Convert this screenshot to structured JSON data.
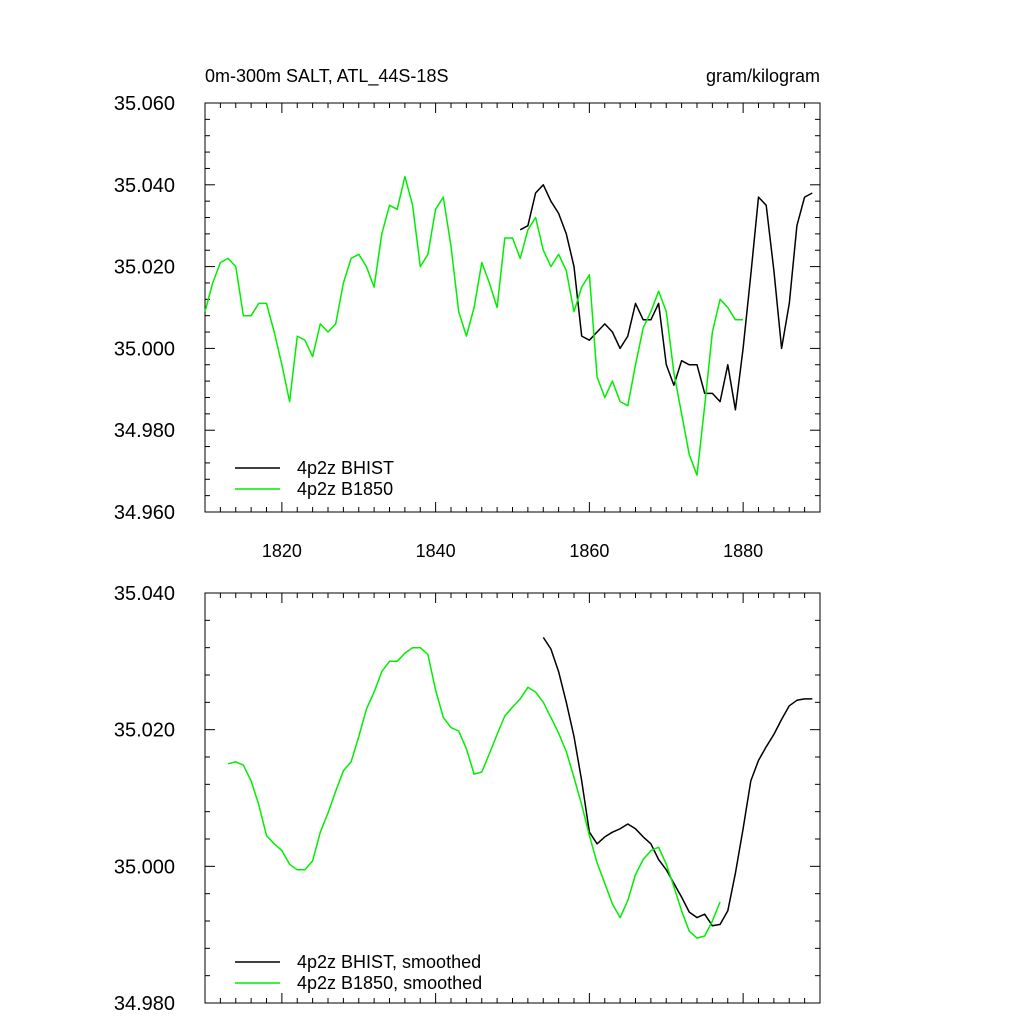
{
  "chart_data": [
    {
      "type": "line",
      "title_left": "0m-300m SALT, ATL_44S-18S",
      "title_right": "gram/kilogram",
      "xlim": [
        1810,
        1890
      ],
      "ylim": [
        34.96,
        35.06
      ],
      "x_ticks": [
        1820,
        1840,
        1860,
        1880
      ],
      "y_ticks": [
        34.96,
        34.98,
        35.0,
        35.02,
        35.04,
        35.06
      ],
      "y_tick_labels": [
        "34.960",
        "34.980",
        "35.000",
        "35.020",
        "35.040",
        "35.060"
      ],
      "legend_position": "bottom-left",
      "series": [
        {
          "name": "4p2z BHIST",
          "color": "#000000",
          "x": [
            1851,
            1852,
            1853,
            1854,
            1855,
            1856,
            1857,
            1858,
            1859,
            1860,
            1861,
            1862,
            1863,
            1864,
            1865,
            1866,
            1867,
            1868,
            1869,
            1870,
            1871,
            1872,
            1873,
            1874,
            1875,
            1876,
            1877,
            1878,
            1879,
            1880,
            1881,
            1882,
            1883,
            1884,
            1885,
            1886,
            1887,
            1888,
            1889
          ],
          "y": [
            35.029,
            35.03,
            35.038,
            35.04,
            35.036,
            35.033,
            35.028,
            35.02,
            35.003,
            35.002,
            35.004,
            35.006,
            35.004,
            35.0,
            35.003,
            35.011,
            35.007,
            35.007,
            35.011,
            34.996,
            34.991,
            34.997,
            34.996,
            34.996,
            34.989,
            34.989,
            34.987,
            34.996,
            34.985,
            35.0,
            35.018,
            35.037,
            35.035,
            35.019,
            35.0,
            35.011,
            35.03,
            35.037,
            35.038
          ]
        },
        {
          "name": "4p2z B1850",
          "color": "#00ee00",
          "x": [
            1810,
            1811,
            1812,
            1813,
            1814,
            1815,
            1816,
            1817,
            1818,
            1819,
            1820,
            1821,
            1822,
            1823,
            1824,
            1825,
            1826,
            1827,
            1828,
            1829,
            1830,
            1831,
            1832,
            1833,
            1834,
            1835,
            1836,
            1837,
            1838,
            1839,
            1840,
            1841,
            1842,
            1843,
            1844,
            1845,
            1846,
            1847,
            1848,
            1849,
            1850,
            1851,
            1852,
            1853,
            1854,
            1855,
            1856,
            1857,
            1858,
            1859,
            1860,
            1861,
            1862,
            1863,
            1864,
            1865,
            1866,
            1867,
            1868,
            1869,
            1870,
            1871,
            1872,
            1873,
            1874,
            1875,
            1876,
            1877,
            1878,
            1879,
            1880
          ],
          "y": [
            35.009,
            35.016,
            35.021,
            35.022,
            35.02,
            35.008,
            35.008,
            35.011,
            35.011,
            35.004,
            34.996,
            34.987,
            35.003,
            35.002,
            34.998,
            35.006,
            35.004,
            35.006,
            35.016,
            35.022,
            35.023,
            35.02,
            35.015,
            35.028,
            35.035,
            35.034,
            35.042,
            35.035,
            35.02,
            35.023,
            35.034,
            35.037,
            35.025,
            35.009,
            35.003,
            35.01,
            35.021,
            35.016,
            35.01,
            35.027,
            35.027,
            35.022,
            35.029,
            35.032,
            35.024,
            35.02,
            35.023,
            35.019,
            35.009,
            35.015,
            35.018,
            34.993,
            34.988,
            34.992,
            34.987,
            34.986,
            34.996,
            35.005,
            35.009,
            35.014,
            35.009,
            34.994,
            34.984,
            34.974,
            34.969,
            34.986,
            35.004,
            35.012,
            35.01,
            35.007,
            35.007
          ]
        }
      ]
    },
    {
      "type": "line",
      "xlim": [
        1810,
        1890
      ],
      "ylim": [
        34.98,
        35.04
      ],
      "x_ticks": [
        1820,
        1840,
        1860,
        1880
      ],
      "y_ticks": [
        34.98,
        35.0,
        35.02,
        35.04
      ],
      "y_tick_labels": [
        "34.980",
        "35.000",
        "35.020",
        "35.040"
      ],
      "legend_position": "bottom-left",
      "series": [
        {
          "name": "4p2z BHIST, smoothed",
          "color": "#000000",
          "x": [
            1854,
            1855,
            1856,
            1857,
            1858,
            1859,
            1860,
            1861,
            1862,
            1863,
            1864,
            1865,
            1866,
            1867,
            1868,
            1869,
            1870,
            1871,
            1872,
            1873,
            1874,
            1875,
            1876,
            1877,
            1878,
            1879,
            1880,
            1881,
            1882,
            1883,
            1884,
            1885,
            1886,
            1887,
            1888,
            1889
          ],
          "y": [
            35.0335,
            35.0318,
            35.0285,
            35.024,
            35.019,
            35.0125,
            35.005,
            35.0033,
            35.0043,
            35.005,
            35.0055,
            35.0062,
            35.0055,
            35.0043,
            35.0033,
            35.001,
            34.9995,
            34.9975,
            34.9955,
            34.9933,
            34.9925,
            34.993,
            34.9913,
            34.9915,
            34.9935,
            34.999,
            35.0055,
            35.0125,
            35.0155,
            35.0175,
            35.0193,
            35.0215,
            35.0235,
            35.0243,
            35.0245,
            35.0245
          ]
        },
        {
          "name": "4p2z B1850, smoothed",
          "color": "#00ee00",
          "x": [
            1813,
            1814,
            1815,
            1816,
            1817,
            1818,
            1819,
            1820,
            1821,
            1822,
            1823,
            1824,
            1825,
            1826,
            1827,
            1828,
            1829,
            1830,
            1831,
            1832,
            1833,
            1834,
            1835,
            1836,
            1837,
            1838,
            1839,
            1840,
            1841,
            1842,
            1843,
            1844,
            1845,
            1846,
            1847,
            1848,
            1849,
            1850,
            1851,
            1852,
            1853,
            1854,
            1855,
            1856,
            1857,
            1858,
            1859,
            1860,
            1861,
            1862,
            1863,
            1864,
            1865,
            1866,
            1867,
            1868,
            1869,
            1870,
            1871,
            1872,
            1873,
            1874,
            1875,
            1876,
            1877
          ],
          "y": [
            35.015,
            35.0153,
            35.0148,
            35.0125,
            35.009,
            35.0045,
            35.0033,
            35.0023,
            35.0003,
            34.9995,
            34.9995,
            35.0008,
            35.005,
            35.0078,
            35.011,
            35.014,
            35.0153,
            35.019,
            35.023,
            35.0255,
            35.0285,
            35.03,
            35.03,
            35.0312,
            35.032,
            35.032,
            35.031,
            35.0258,
            35.0218,
            35.0203,
            35.0198,
            35.0172,
            35.0135,
            35.0138,
            35.0165,
            35.0193,
            35.022,
            35.0233,
            35.0245,
            35.0262,
            35.0255,
            35.024,
            35.0218,
            35.0195,
            35.0168,
            35.013,
            35.009,
            35.0045,
            35.0005,
            34.9975,
            34.9945,
            34.9925,
            34.995,
            34.9988,
            35.001,
            35.0023,
            35.0028,
            35.0003,
            34.997,
            34.9935,
            34.9905,
            34.9895,
            34.9898,
            34.992,
            34.9948
          ]
        }
      ]
    }
  ]
}
